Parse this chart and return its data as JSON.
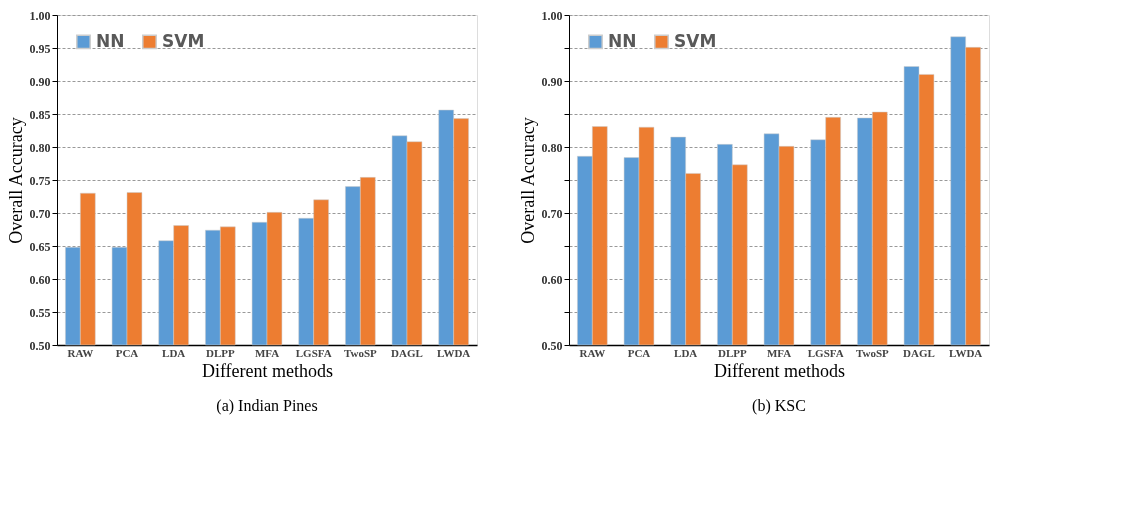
{
  "chart_data": [
    {
      "type": "bar",
      "title": "(a)  Indian Pines",
      "xlabel": "Different methods",
      "ylabel": "Overall Accuracy",
      "categories": [
        "RAW",
        "PCA",
        "LDA",
        "DLPP",
        "MFA",
        "LGSFA",
        "TwoSP",
        "DAGL",
        "LWDA"
      ],
      "series": [
        {
          "name": "NN",
          "color": "#5b9bd5",
          "values": [
            0.648,
            0.648,
            0.658,
            0.674,
            0.686,
            0.692,
            0.74,
            0.817,
            0.856
          ]
        },
        {
          "name": "SVM",
          "color": "#ed7d31",
          "values": [
            0.73,
            0.731,
            0.681,
            0.679,
            0.701,
            0.72,
            0.754,
            0.808,
            0.843
          ]
        }
      ],
      "ylim": [
        0.5,
        1.0
      ],
      "yticks": [
        "0.50",
        "0.55",
        "0.60",
        "0.65",
        "0.70",
        "0.75",
        "0.80",
        "0.85",
        "0.90",
        "0.95",
        "1.00"
      ],
      "grid": "y",
      "legend": "top left"
    },
    {
      "type": "bar",
      "title": "(b)  KSC",
      "xlabel": "Different methods",
      "ylabel": "Overall Accuracy",
      "categories": [
        "RAW",
        "PCA",
        "LDA",
        "DLPP",
        "MFA",
        "LGSFA",
        "TwoSP",
        "DAGL",
        "LWDA"
      ],
      "series": [
        {
          "name": "NN",
          "color": "#5b9bd5",
          "values": [
            0.786,
            0.784,
            0.815,
            0.804,
            0.82,
            0.811,
            0.844,
            0.922,
            0.967
          ]
        },
        {
          "name": "SVM",
          "color": "#ed7d31",
          "values": [
            0.831,
            0.83,
            0.76,
            0.773,
            0.801,
            0.845,
            0.853,
            0.91,
            0.951
          ]
        }
      ],
      "ylim": [
        0.5,
        1.0
      ],
      "yticks": [
        {
          "value": 0.5,
          "label": "0.50"
        },
        {
          "value": 0.55,
          "label": null
        },
        {
          "value": 0.6,
          "label": "0.60"
        },
        {
          "value": 0.65,
          "label": null
        },
        {
          "value": 0.7,
          "label": "0.70"
        },
        {
          "value": 0.75,
          "label": null
        },
        {
          "value": 0.8,
          "label": "0.80"
        },
        {
          "value": 0.85,
          "label": null
        },
        {
          "value": 0.9,
          "label": "0.90"
        },
        {
          "value": 0.95,
          "label": null
        },
        {
          "value": 1.0,
          "label": "1.00"
        }
      ],
      "grid": "y",
      "legend": "top left"
    }
  ]
}
